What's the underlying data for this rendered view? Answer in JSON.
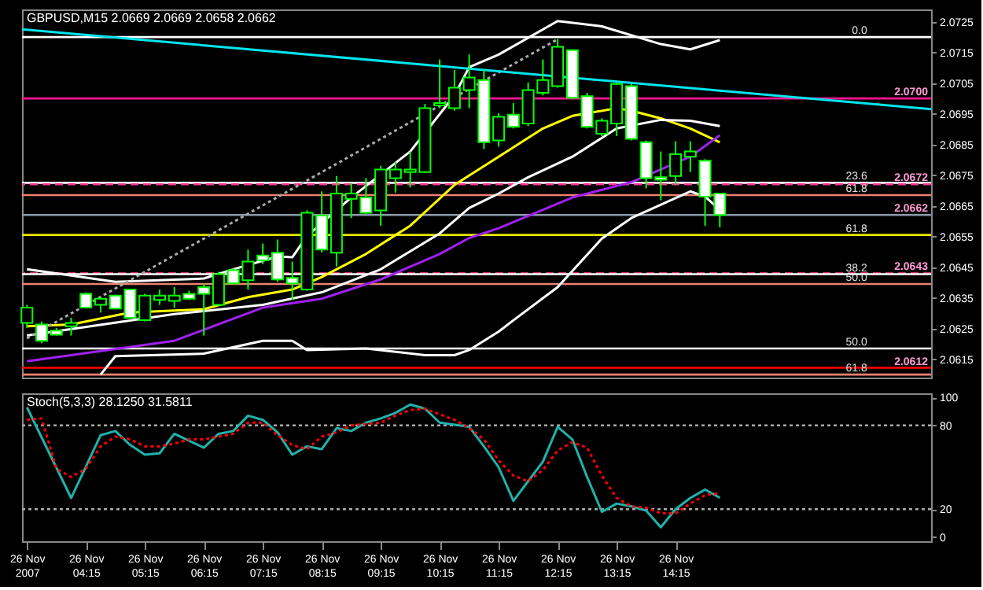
{
  "chart_data": [
    {
      "type": "candlestick",
      "title": "GBPUSD,M15 2.0669 2.0669 2.0658 2.0662",
      "x": [
        "2007-11-26T03:15",
        "2007-11-26T03:30",
        "2007-11-26T03:45",
        "2007-11-26T04:00",
        "2007-11-26T04:15",
        "2007-11-26T04:30",
        "2007-11-26T04:45",
        "2007-11-26T05:00",
        "2007-11-26T05:15",
        "2007-11-26T05:30",
        "2007-11-26T05:45",
        "2007-11-26T06:00",
        "2007-11-26T06:15",
        "2007-11-26T06:30",
        "2007-11-26T06:45",
        "2007-11-26T07:00",
        "2007-11-26T07:15",
        "2007-11-26T07:30",
        "2007-11-26T07:45",
        "2007-11-26T08:00",
        "2007-11-26T08:15",
        "2007-11-26T08:30",
        "2007-11-26T08:45",
        "2007-11-26T09:00",
        "2007-11-26T09:15",
        "2007-11-26T09:30",
        "2007-11-26T09:45",
        "2007-11-26T10:00",
        "2007-11-26T10:15",
        "2007-11-26T10:30",
        "2007-11-26T10:45",
        "2007-11-26T11:00",
        "2007-11-26T11:15",
        "2007-11-26T11:30",
        "2007-11-26T11:45",
        "2007-11-26T12:00",
        "2007-11-26T12:15",
        "2007-11-26T12:30",
        "2007-11-26T12:45",
        "2007-11-26T13:00",
        "2007-11-26T13:15",
        "2007-11-26T13:30",
        "2007-11-26T13:45",
        "2007-11-26T14:00",
        "2007-11-26T14:15",
        "2007-11-26T14:30",
        "2007-11-26T14:45",
        "2007-11-26T15:00"
      ],
      "ohlc": [
        [
          2.06268,
          2.06327,
          2.06252,
          2.06318
        ],
        [
          2.06263,
          2.06273,
          2.06202,
          2.0621
        ],
        [
          2.06243,
          2.06252,
          2.06227,
          2.0623
        ],
        [
          2.06257,
          2.06285,
          2.06227,
          2.06268
        ],
        [
          2.06363,
          2.06368,
          2.06315,
          2.06318
        ],
        [
          2.06327,
          2.06352,
          2.06302,
          2.06347
        ],
        [
          2.06357,
          2.0636,
          2.06312,
          2.06315
        ],
        [
          2.06377,
          2.0638,
          2.06282,
          2.06285
        ],
        [
          2.06277,
          2.06363,
          2.06273,
          2.06357
        ],
        [
          2.06343,
          2.06377,
          2.06327,
          2.06357
        ],
        [
          2.0634,
          2.06385,
          2.06318,
          2.06357
        ],
        [
          2.06363,
          2.06373,
          2.06343,
          2.06347
        ],
        [
          2.06385,
          2.06397,
          2.06227,
          2.06363
        ],
        [
          2.06327,
          2.06435,
          2.06323,
          2.06427
        ],
        [
          2.0644,
          2.06447,
          2.06393,
          2.06397
        ],
        [
          2.06407,
          2.06507,
          2.06377,
          2.06468
        ],
        [
          2.06488,
          2.06527,
          2.0646,
          2.06472
        ],
        [
          2.06497,
          2.0654,
          2.06402,
          2.0641
        ],
        [
          2.06415,
          2.06468,
          2.06343,
          2.06397
        ],
        [
          2.06377,
          2.06635,
          2.06373,
          2.06627
        ],
        [
          2.06618,
          2.06697,
          2.06498,
          2.06507
        ],
        [
          2.06497,
          2.06747,
          2.06452,
          2.0669
        ],
        [
          2.06673,
          2.06723,
          2.0661,
          2.0669
        ],
        [
          2.06677,
          2.0674,
          2.06623,
          2.06627
        ],
        [
          2.06635,
          2.0678,
          2.06585,
          2.06768
        ],
        [
          2.0674,
          2.06793,
          2.06693,
          2.06768
        ],
        [
          2.0676,
          2.06827,
          2.0671,
          2.06768
        ],
        [
          2.0676,
          2.06982,
          2.06757,
          2.06968
        ],
        [
          2.06977,
          2.07127,
          2.06968,
          2.06985
        ],
        [
          2.06968,
          2.07093,
          2.0696,
          2.07035
        ],
        [
          2.07027,
          2.07143,
          2.06968,
          2.07068
        ],
        [
          2.0706,
          2.07093,
          2.06835,
          2.06857
        ],
        [
          2.06863,
          2.06952,
          2.06843,
          2.0694
        ],
        [
          2.06947,
          2.06985,
          2.06902,
          2.06907
        ],
        [
          2.06918,
          2.07052,
          2.0691,
          2.07027
        ],
        [
          2.07018,
          2.07127,
          2.0701,
          2.0706
        ],
        [
          2.0704,
          2.07193,
          2.07035,
          2.07168
        ],
        [
          2.07157,
          2.0716,
          2.06997,
          2.07002
        ],
        [
          2.07007,
          2.07018,
          2.06902,
          2.06907
        ],
        [
          2.06885,
          2.06935,
          2.06877,
          2.06927
        ],
        [
          2.06918,
          2.07052,
          2.06877,
          2.07047
        ],
        [
          2.0704,
          2.07047,
          2.06863,
          2.06868
        ],
        [
          2.06857,
          2.06863,
          2.06707,
          2.0674
        ],
        [
          2.06743,
          2.06827,
          2.06668,
          2.06735
        ],
        [
          2.06747,
          2.0686,
          2.06718,
          2.06818
        ],
        [
          2.0681,
          2.0686,
          2.0676,
          2.06827
        ],
        [
          2.06797,
          2.06802,
          2.06585,
          2.0668
        ],
        [
          2.0669,
          2.0669,
          2.0658,
          2.0662
        ]
      ],
      "series": [
        {
          "type": "line",
          "color": "#ffff00",
          "x": [
            "2007-11-26T03:15",
            "2007-11-26T04:00",
            "2007-11-26T05:00",
            "2007-11-26T06:15",
            "2007-11-26T07:00",
            "2007-11-26T07:45",
            "2007-11-26T08:15",
            "2007-11-26T09:00",
            "2007-11-26T09:45",
            "2007-11-26T10:30",
            "2007-11-26T11:15",
            "2007-11-26T12:00",
            "2007-11-26T12:30",
            "2007-11-26T13:15",
            "2007-11-26T13:30",
            "2007-11-26T14:00",
            "2007-11-26T14:30",
            "2007-11-26T15:00"
          ],
          "values": [
            2.06257,
            2.06263,
            2.06302,
            2.06313,
            2.06352,
            2.06377,
            2.06418,
            2.06493,
            2.06585,
            2.06718,
            2.0681,
            2.06902,
            2.06943,
            2.06968,
            2.0696,
            2.06935,
            2.06902,
            2.06857
          ]
        },
        {
          "type": "line",
          "color": "#a020f0",
          "x": [
            "2007-11-26T03:15",
            "2007-11-26T05:45",
            "2007-11-26T07:15",
            "2007-11-26T08:15",
            "2007-11-26T09:15",
            "2007-11-26T10:15",
            "2007-11-26T10:45",
            "2007-11-26T11:15",
            "2007-11-26T12:30",
            "2007-11-26T13:30",
            "2007-11-26T14:30",
            "2007-11-26T15:00"
          ],
          "values": [
            2.06143,
            2.0621,
            2.06318,
            2.06347,
            2.0641,
            2.06493,
            2.06545,
            2.06577,
            2.06677,
            2.06727,
            2.0681,
            2.0688
          ]
        },
        {
          "type": "line",
          "color": "#ffffff",
          "x": [
            "2007-11-26T03:15",
            "2007-11-26T05:45",
            "2007-11-26T07:15",
            "2007-11-26T08:15",
            "2007-11-26T09:15",
            "2007-11-26T10:15",
            "2007-11-26T10:45",
            "2007-11-26T11:15",
            "2007-11-26T11:45",
            "2007-11-26T12:30",
            "2007-11-26T13:15",
            "2007-11-26T14:00",
            "2007-11-26T14:30",
            "2007-11-26T15:00"
          ],
          "values": [
            2.06227,
            2.06297,
            2.06327,
            2.06368,
            2.06443,
            2.0656,
            2.06643,
            2.0669,
            2.06743,
            2.0681,
            2.06902,
            2.0693,
            2.06927,
            2.0691
          ]
        },
        {
          "type": "line",
          "color": "#ffffff",
          "x": [
            "2007-11-26T03:15",
            "2007-11-26T04:45",
            "2007-11-26T06:15",
            "2007-11-26T06:45",
            "2007-11-26T07:30",
            "2007-11-26T07:45",
            "2007-11-26T08:00",
            "2007-11-26T08:45",
            "2007-11-26T09:45",
            "2007-11-26T10:30",
            "2007-11-26T10:45",
            "2007-11-26T11:15",
            "2007-11-26T12:15",
            "2007-11-26T13:00",
            "2007-11-26T14:00",
            "2007-11-26T14:30",
            "2007-11-26T15:00"
          ],
          "values": [
            2.06443,
            2.06402,
            2.06413,
            2.06443,
            2.06485,
            2.06482,
            2.06552,
            2.06677,
            2.06827,
            2.0701,
            2.07102,
            2.07143,
            2.07252,
            2.07235,
            2.07177,
            2.0716,
            2.0719
          ]
        },
        {
          "type": "line",
          "color": "#ffffff",
          "x": [
            "2007-11-26T04:30",
            "2007-11-26T04:45",
            "2007-11-26T06:15",
            "2007-11-26T07:15",
            "2007-11-26T07:45",
            "2007-11-26T08:00",
            "2007-11-26T09:00",
            "2007-11-26T10:00",
            "2007-11-26T10:30",
            "2007-11-26T10:45",
            "2007-11-26T11:15",
            "2007-11-26T11:30",
            "2007-11-26T12:15",
            "2007-11-26T13:00",
            "2007-11-26T13:30",
            "2007-11-26T14:30",
            "2007-11-26T14:45",
            "2007-11-26T15:00"
          ],
          "values": [
            2.061,
            2.0616,
            2.06168,
            2.0621,
            2.0621,
            2.0618,
            2.06185,
            2.06163,
            2.06163,
            2.0618,
            2.0624,
            2.06277,
            2.06385,
            2.06543,
            2.0661,
            2.06697,
            2.0668,
            2.06637
          ]
        },
        {
          "type": "line",
          "color": "#aaaaaa",
          "line_style": "dotted",
          "x": [
            "2007-11-26T03:15",
            "2007-11-26T12:15"
          ],
          "values": [
            2.06218,
            2.07193
          ]
        },
        {
          "type": "line",
          "color": "#00e5ee",
          "x": [
            "2007-11-26T03:10",
            "2007-11-26T18:35"
          ],
          "values": [
            2.07225,
            2.06965
          ]
        }
      ],
      "ref_lines": [
        {
          "axis": "y",
          "value": 2.072,
          "color": "#ffffff"
        },
        {
          "axis": "y",
          "value": 2.07,
          "color": "#ff1493"
        },
        {
          "axis": "y",
          "value": 2.06725,
          "color": "#ffffff"
        },
        {
          "axis": "y",
          "value": 2.0672,
          "color": "#ff3399",
          "line_style": "dashed"
        },
        {
          "axis": "y",
          "value": 2.06685,
          "color": "#f08070"
        },
        {
          "axis": "y",
          "value": 2.0662,
          "color": "#8899aa"
        },
        {
          "axis": "y",
          "value": 2.06555,
          "color": "#e6e600"
        },
        {
          "axis": "y",
          "value": 2.0643,
          "color": "#cc3366",
          "line_style": "dashed"
        },
        {
          "axis": "y",
          "value": 2.06427,
          "color": "#ffffff"
        },
        {
          "axis": "y",
          "value": 2.06395,
          "color": "#f08070"
        },
        {
          "axis": "y",
          "value": 2.06185,
          "color": "#ffffff"
        },
        {
          "axis": "y",
          "value": 2.06122,
          "color": "#ff0000"
        },
        {
          "axis": "y",
          "value": 2.061,
          "color": "#f08070"
        }
      ],
      "annotations": [
        {
          "text": "0.0",
          "x": "2007-11-26T17:30",
          "y": 2.072
        },
        {
          "text": "23.6",
          "x": "2007-11-26T17:30",
          "y": 2.06725
        },
        {
          "text": "61.8",
          "x": "2007-11-26T17:30",
          "y": 2.06685
        },
        {
          "text": "61.8",
          "x": "2007-11-26T17:30",
          "y": 2.06555
        },
        {
          "text": "38.2",
          "x": "2007-11-26T17:30",
          "y": 2.06427
        },
        {
          "text": "50.0",
          "x": "2007-11-26T17:30",
          "y": 2.06395
        },
        {
          "text": "50.0",
          "x": "2007-11-26T17:30",
          "y": 2.06185
        },
        {
          "text": "61.8",
          "x": "2007-11-26T17:30",
          "y": 2.061
        },
        {
          "text": "2.0700",
          "y": 2.07
        },
        {
          "text": "2.0672",
          "y": 2.0672
        },
        {
          "text": "2.0662",
          "y": 2.0662
        },
        {
          "text": "2.0643",
          "y": 2.0643
        },
        {
          "text": "2.0612",
          "y": 2.0612
        }
      ],
      "xlim": [
        "2007-11-26T03:10",
        "2007-11-26T18:35"
      ],
      "ylim": [
        2.0609,
        2.0729
      ],
      "yticks": [
        2.0725,
        2.0715,
        2.0705,
        2.0695,
        2.0685,
        2.0675,
        2.0665,
        2.0655,
        2.0645,
        2.0635,
        2.0625,
        2.0615
      ],
      "tick_labels": "y",
      "grid": false
    },
    {
      "type": "line",
      "title": "Stoch(5,3,3) 28.1250 31.5811",
      "series": [
        {
          "type": "line",
          "color": "#20b2aa",
          "x": [
            "2007-11-26T03:15",
            "2007-11-26T04:00",
            "2007-11-26T04:30",
            "2007-11-26T04:45",
            "2007-11-26T05:00",
            "2007-11-26T05:15",
            "2007-11-26T05:30",
            "2007-11-26T05:45",
            "2007-11-26T06:15",
            "2007-11-26T06:30",
            "2007-11-26T06:45",
            "2007-11-26T07:00",
            "2007-11-26T07:15",
            "2007-11-26T07:30",
            "2007-11-26T07:45",
            "2007-11-26T08:00",
            "2007-11-26T08:15",
            "2007-11-26T08:30",
            "2007-11-26T08:45",
            "2007-11-26T09:00",
            "2007-11-26T09:15",
            "2007-11-26T09:30",
            "2007-11-26T09:45",
            "2007-11-26T10:00",
            "2007-11-26T10:15",
            "2007-11-26T10:45",
            "2007-11-26T11:00",
            "2007-11-26T11:15",
            "2007-11-26T11:30",
            "2007-11-26T11:45",
            "2007-11-26T12:00",
            "2007-11-26T12:15",
            "2007-11-26T12:30",
            "2007-11-26T12:45",
            "2007-11-26T13:00",
            "2007-11-26T13:15",
            "2007-11-26T13:30",
            "2007-11-26T13:45",
            "2007-11-26T14:00",
            "2007-11-26T14:15",
            "2007-11-26T14:30",
            "2007-11-26T14:45",
            "2007-11-26T15:00"
          ],
          "values": [
            93,
            28,
            73,
            76,
            66,
            59,
            60,
            74,
            64,
            74,
            76,
            87,
            84,
            75,
            59,
            65,
            63,
            78,
            76,
            82,
            85,
            89,
            95,
            92,
            82,
            79,
            65,
            50,
            26,
            40,
            54,
            79,
            70,
            43,
            18,
            24,
            22,
            19,
            7,
            20,
            28,
            34,
            28.125
          ]
        },
        {
          "type": "line",
          "color": "#ff0000",
          "line_style": "dotted",
          "x": [
            "2007-11-26T03:15",
            "2007-11-26T03:30",
            "2007-11-26T03:45",
            "2007-11-26T04:00",
            "2007-11-26T04:15",
            "2007-11-26T04:30",
            "2007-11-26T04:45",
            "2007-11-26T05:00",
            "2007-11-26T05:15",
            "2007-11-26T05:30",
            "2007-11-26T05:45",
            "2007-11-26T06:00",
            "2007-11-26T06:15",
            "2007-11-26T06:30",
            "2007-11-26T06:45",
            "2007-11-26T07:00",
            "2007-11-26T07:15",
            "2007-11-26T07:30",
            "2007-11-26T07:45",
            "2007-11-26T08:00",
            "2007-11-26T08:15",
            "2007-11-26T08:30",
            "2007-11-26T08:45",
            "2007-11-26T09:15",
            "2007-11-26T09:30",
            "2007-11-26T09:45",
            "2007-11-26T10:00",
            "2007-11-26T10:15",
            "2007-11-26T10:30",
            "2007-11-26T10:45",
            "2007-11-26T11:00",
            "2007-11-26T11:15",
            "2007-11-26T11:30",
            "2007-11-26T11:45",
            "2007-11-26T12:00",
            "2007-11-26T12:15",
            "2007-11-26T12:30",
            "2007-11-26T12:45",
            "2007-11-26T13:00",
            "2007-11-26T13:15",
            "2007-11-26T13:30",
            "2007-11-26T13:45",
            "2007-11-26T14:00",
            "2007-11-26T14:15",
            "2007-11-26T14:30",
            "2007-11-26T14:45",
            "2007-11-26T15:00"
          ],
          "values": [
            84,
            85,
            49,
            43,
            49,
            65,
            72,
            70,
            65,
            65,
            67,
            70,
            70,
            72,
            74,
            82,
            82,
            73,
            66,
            63,
            72,
            75,
            80,
            82,
            87,
            91,
            92,
            88,
            84,
            78,
            70,
            55,
            44,
            40,
            48,
            62,
            68,
            64,
            44,
            28,
            22,
            21,
            17,
            17,
            24,
            30,
            31.5811
          ]
        }
      ],
      "ref_lines": [
        {
          "axis": "y",
          "value": 20,
          "color": "#aaaaaa",
          "line_style": "dotted"
        },
        {
          "axis": "y",
          "value": 80,
          "color": "#aaaaaa",
          "line_style": "dotted"
        }
      ],
      "xlim": [
        "2007-11-26T03:10",
        "2007-11-26T18:35"
      ],
      "xticks": [
        {
          "value": "2007-11-26T03:15",
          "label": "26 Nov 2007"
        },
        {
          "value": "2007-11-26T04:15",
          "label": "26 Nov 04:15"
        },
        {
          "value": "2007-11-26T05:15",
          "label": "26 Nov 05:15"
        },
        {
          "value": "2007-11-26T06:15",
          "label": "26 Nov 06:15"
        },
        {
          "value": "2007-11-26T07:15",
          "label": "26 Nov 07:15"
        },
        {
          "value": "2007-11-26T08:15",
          "label": "26 Nov 08:15"
        },
        {
          "value": "2007-11-26T09:15",
          "label": "26 Nov 09:15"
        },
        {
          "value": "2007-11-26T10:15",
          "label": "26 Nov 10:15"
        },
        {
          "value": "2007-11-26T11:15",
          "label": "26 Nov 11:15"
        },
        {
          "value": "2007-11-26T12:15",
          "label": "26 Nov 12:15"
        },
        {
          "value": "2007-11-26T13:15",
          "label": "26 Nov 13:15"
        },
        {
          "value": "2007-11-26T14:15",
          "label": "26 Nov 14:15"
        }
      ],
      "ylim": [
        -3,
        103
      ],
      "yticks": [
        0,
        20,
        80,
        100
      ],
      "grid": false
    }
  ]
}
